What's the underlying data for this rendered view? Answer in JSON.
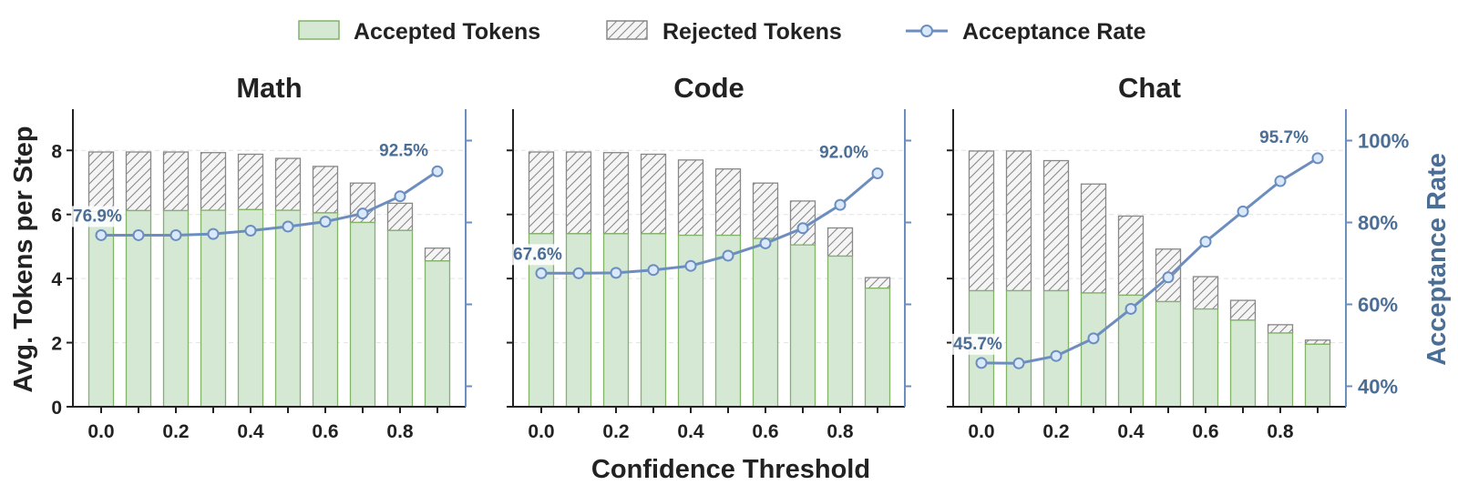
{
  "legend": {
    "accepted": "Accepted Tokens",
    "rejected": "Rejected Tokens",
    "rate": "Acceptance Rate"
  },
  "axes": {
    "xlabel": "Confidence Threshold",
    "ylabel": "Avg. Tokens per Step",
    "y2label": "Acceptance Rate",
    "x_ticks": [
      "0.0",
      "0.2",
      "0.4",
      "0.6",
      "0.8"
    ],
    "y_ticks": [
      "0",
      "2",
      "4",
      "6",
      "8"
    ],
    "y2_ticks": [
      "40%",
      "60%",
      "80%",
      "100%"
    ]
  },
  "colors": {
    "accepted_fill": "#d5e8d4",
    "accepted_edge": "#82b366",
    "rejected_fill": "#f5f5f5",
    "rejected_edge": "#888888",
    "rate_line": "#6c8ebf",
    "rate_marker_fill": "#dae8fc",
    "annotation_text": "#4a6e96"
  },
  "chart_data": {
    "type": "bar",
    "x": [
      0.0,
      0.1,
      0.2,
      0.3,
      0.4,
      0.5,
      0.6,
      0.7,
      0.8,
      0.9
    ],
    "ylim": [
      0,
      9.2
    ],
    "y2lim": [
      35,
      107
    ],
    "legend_position": "top-center",
    "panels": [
      {
        "title": "Math",
        "accepted": [
          6.1,
          6.12,
          6.12,
          6.13,
          6.15,
          6.13,
          6.05,
          5.75,
          5.5,
          4.55
        ],
        "total": [
          7.95,
          7.95,
          7.95,
          7.93,
          7.88,
          7.75,
          7.5,
          6.98,
          6.35,
          4.95
        ],
        "acceptance_rate": [
          76.9,
          76.9,
          76.9,
          77.2,
          78.0,
          79.0,
          80.2,
          82.2,
          86.4,
          92.5
        ],
        "start_label": "76.9%",
        "end_label": "92.5%"
      },
      {
        "title": "Code",
        "accepted": [
          5.4,
          5.4,
          5.4,
          5.4,
          5.35,
          5.35,
          5.25,
          5.05,
          4.7,
          3.7
        ],
        "total": [
          7.95,
          7.95,
          7.93,
          7.88,
          7.7,
          7.42,
          6.98,
          6.42,
          5.58,
          4.03
        ],
        "acceptance_rate": [
          67.6,
          67.6,
          67.7,
          68.4,
          69.4,
          71.9,
          74.9,
          78.6,
          84.3,
          92.0
        ],
        "start_label": "67.6%",
        "end_label": "92.0%"
      },
      {
        "title": "Chat",
        "accepted": [
          3.62,
          3.62,
          3.62,
          3.55,
          3.48,
          3.28,
          3.05,
          2.7,
          2.3,
          1.95
        ],
        "total": [
          7.98,
          7.98,
          7.68,
          6.95,
          5.95,
          4.92,
          4.06,
          3.32,
          2.56,
          2.08
        ],
        "acceptance_rate": [
          45.7,
          45.6,
          47.4,
          51.7,
          58.9,
          66.6,
          75.3,
          82.7,
          90.1,
          95.7
        ],
        "start_label": "45.7%",
        "end_label": "95.7%"
      }
    ]
  }
}
